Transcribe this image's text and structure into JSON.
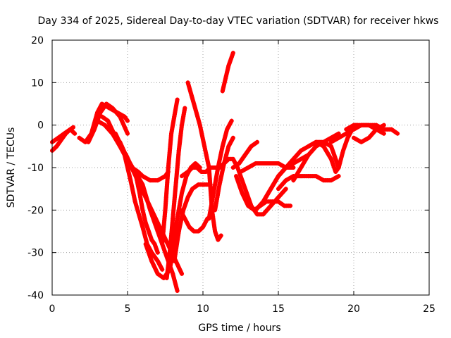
{
  "chart_data": {
    "type": "scatter",
    "title": "Day 334 of 2025, Sidereal Day-to-day VTEC variation (SDTVAR) for receiver hkws",
    "xlabel": "GPS time / hours",
    "ylabel": "SDTVAR / TECUs",
    "xlim": [
      0,
      25
    ],
    "ylim": [
      -40,
      20
    ],
    "x_ticks": [
      0,
      5,
      10,
      15,
      20,
      25
    ],
    "y_ticks": [
      -40,
      -30,
      -20,
      -10,
      0,
      10,
      20
    ],
    "x_tick_labels": [
      "0",
      "5",
      "10",
      "15",
      "20",
      "25"
    ],
    "y_tick_labels": [
      "-40",
      "-30",
      "-20",
      "-10",
      "0",
      "10",
      "20"
    ],
    "grid": true,
    "marker": "+",
    "color": "#ff0000",
    "series": [
      {
        "x": [
          0,
          0.3,
          0.6,
          0.9,
          1.2,
          1.5
        ],
        "y": [
          -6,
          -5,
          -3.5,
          -2,
          -1,
          -2
        ]
      },
      {
        "x": [
          0,
          0.4,
          0.8,
          1.2,
          1.4
        ],
        "y": [
          -4,
          -3,
          -2,
          -1,
          -0.5
        ]
      },
      {
        "x": [
          1.8,
          2.2,
          2.6,
          3.0,
          3.3,
          3.8,
          4.3,
          4.8,
          5.0
        ],
        "y": [
          -3,
          -4,
          -2,
          3,
          5,
          4,
          3,
          2,
          1
        ]
      },
      {
        "x": [
          2.4,
          2.8,
          3.2,
          3.6,
          4.0,
          4.5,
          5.0
        ],
        "y": [
          -4,
          -1,
          3,
          5,
          4,
          2,
          -2
        ]
      },
      {
        "x": [
          3.3,
          3.7,
          4.1,
          4.5,
          4.9,
          5.3,
          5.7,
          6.0,
          6.5,
          7.0,
          7.5,
          7.7
        ],
        "y": [
          2,
          1,
          -2,
          -5,
          -7,
          -10,
          -11,
          -12,
          -13,
          -13,
          -12,
          -11
        ]
      },
      {
        "x": [
          3.0,
          3.5,
          4.0,
          4.5,
          4.8,
          5.0,
          5.2,
          5.5,
          6.0,
          6.3,
          6.6,
          7.0,
          7.3
        ],
        "y": [
          1,
          0,
          -2,
          -5,
          -7,
          -10,
          -13,
          -18,
          -24,
          -28,
          -30,
          -32,
          -34
        ]
      },
      {
        "x": [
          3.5,
          4.0,
          4.5,
          5.0,
          5.5,
          6.0,
          6.5,
          7.0,
          7.3,
          7.6,
          8.0,
          8.3
        ],
        "y": [
          0,
          -2,
          -4,
          -8,
          -11,
          -14,
          -20,
          -25,
          -28,
          -31,
          -35,
          -39
        ]
      },
      {
        "x": [
          4.2,
          4.6,
          5.0,
          5.4,
          5.8,
          6.2,
          6.6,
          7.0,
          7.4,
          7.8,
          8.2,
          8.6
        ],
        "y": [
          -2,
          -5,
          -8,
          -11,
          -14,
          -17,
          -20,
          -23,
          -26,
          -29,
          -32,
          -35
        ]
      },
      {
        "x": [
          5.5,
          5.8,
          6.0,
          6.2,
          6.4,
          6.6,
          6.8,
          7.0
        ],
        "y": [
          -11,
          -16,
          -20,
          -23,
          -25,
          -27,
          -28,
          -30
        ]
      },
      {
        "x": [
          6.2,
          6.6,
          7.0,
          7.4,
          7.8,
          8.0,
          8.1
        ],
        "y": [
          -28,
          -32,
          -35,
          -36,
          -34,
          -30,
          -26
        ]
      },
      {
        "x": [
          7.3,
          7.5,
          7.7,
          7.9,
          8.1,
          8.3
        ],
        "y": [
          -28,
          -20,
          -10,
          -2,
          2,
          6
        ]
      },
      {
        "x": [
          7.6,
          7.8,
          8.0,
          8.2,
          8.4,
          8.6,
          8.8
        ],
        "y": [
          -36,
          -30,
          -22,
          -14,
          -6,
          0,
          4
        ]
      },
      {
        "x": [
          8.1,
          8.4,
          8.7,
          9.0,
          9.3,
          9.7,
          10.1,
          10.5
        ],
        "y": [
          -32,
          -25,
          -20,
          -17,
          -15,
          -14,
          -14,
          -14
        ]
      },
      {
        "x": [
          8.0,
          8.3,
          8.6,
          8.9,
          9.2,
          9.5,
          9.8
        ],
        "y": [
          -28,
          -22,
          -16,
          -12,
          -10,
          -9,
          -10
        ]
      },
      {
        "x": [
          8.6,
          9.0,
          9.3,
          9.6,
          9.9,
          10.2,
          10.5,
          10.8,
          11.1,
          11.4,
          11.7,
          12.0
        ],
        "y": [
          -12,
          -11,
          -10,
          -10,
          -11,
          -11,
          -10,
          -10,
          -10,
          -9,
          -8,
          -8
        ]
      },
      {
        "x": [
          9.0,
          9.4,
          9.8,
          10.1,
          10.4,
          10.6,
          10.8,
          11.0,
          11.2
        ],
        "y": [
          10,
          5,
          0,
          -5,
          -10,
          -20,
          -25,
          -27,
          -26
        ]
      },
      {
        "x": [
          8.5,
          8.8,
          9.1,
          9.4,
          9.7,
          10.0,
          10.3
        ],
        "y": [
          -20,
          -22,
          -24,
          -25,
          -25,
          -24,
          -22
        ]
      },
      {
        "x": [
          10.4,
          10.7,
          11.0,
          11.3,
          11.6,
          11.9
        ],
        "y": [
          -22,
          -16,
          -10,
          -5,
          -1,
          1
        ]
      },
      {
        "x": [
          10.8,
          11.1,
          11.4,
          11.7,
          12.0
        ],
        "y": [
          -20,
          -14,
          -9,
          -5,
          -3
        ]
      },
      {
        "x": [
          11.3,
          11.5,
          11.7,
          11.9,
          12.0
        ],
        "y": [
          8,
          11,
          14,
          16,
          17
        ]
      },
      {
        "x": [
          12.0,
          12.3,
          12.6,
          12.9,
          13.2,
          13.6,
          14.0,
          14.5,
          15.0,
          15.5
        ],
        "y": [
          -8,
          -10,
          -13,
          -16,
          -19,
          -21,
          -21,
          -19,
          -17,
          -15
        ]
      },
      {
        "x": [
          12.2,
          12.6,
          13.0,
          13.4,
          13.8,
          14.2,
          14.6,
          15.0,
          15.4,
          15.8
        ],
        "y": [
          -12,
          -16,
          -19,
          -20,
          -19,
          -18,
          -18,
          -18,
          -19,
          -19
        ]
      },
      {
        "x": [
          12.0,
          12.4,
          12.8,
          13.2,
          13.6
        ],
        "y": [
          -10,
          -9,
          -7,
          -5,
          -4
        ]
      },
      {
        "x": [
          13.5,
          14.0,
          14.5,
          15.0,
          15.5,
          16.0,
          16.5,
          17.0
        ],
        "y": [
          -20,
          -18,
          -15,
          -12,
          -10,
          -9,
          -8,
          -7
        ]
      },
      {
        "x": [
          14.0,
          14.5,
          15.0,
          15.5,
          16.0,
          16.5,
          17.0,
          17.5,
          18.0,
          18.5,
          19.0
        ],
        "y": [
          -18,
          -15,
          -12,
          -10,
          -8,
          -6,
          -5,
          -4,
          -4,
          -3,
          -2
        ]
      },
      {
        "x": [
          12.5,
          13.0,
          13.5,
          14.0,
          14.5,
          15.0,
          15.5,
          16.0
        ],
        "y": [
          -11,
          -10,
          -9,
          -9,
          -9,
          -9,
          -10,
          -10
        ]
      },
      {
        "x": [
          15.0,
          15.5,
          16.0,
          16.5,
          17.0,
          17.5,
          18.0,
          18.5,
          19.0
        ],
        "y": [
          -15,
          -13,
          -12,
          -12,
          -12,
          -12,
          -13,
          -13,
          -12
        ]
      },
      {
        "x": [
          16.0,
          16.5,
          17.0,
          17.5,
          18.0,
          18.5,
          18.8,
          19.0
        ],
        "y": [
          -13,
          -10,
          -7,
          -5,
          -4,
          -5,
          -8,
          -10
        ]
      },
      {
        "x": [
          17.0,
          17.5,
          18.0,
          18.5,
          18.8,
          19.0,
          19.3,
          19.6,
          19.9,
          20.2
        ],
        "y": [
          -5,
          -4,
          -5,
          -8,
          -11,
          -10,
          -6,
          -3,
          -1,
          0
        ]
      },
      {
        "x": [
          18.5,
          19.0,
          19.5,
          20.0,
          20.5,
          21.0,
          21.5,
          22.0
        ],
        "y": [
          -4,
          -3,
          -2,
          -1,
          0,
          0,
          -1,
          -2
        ]
      },
      {
        "x": [
          19.5,
          20.0,
          20.5,
          21.0,
          21.5,
          22.0,
          22.5,
          22.9
        ],
        "y": [
          -1,
          0,
          0,
          0,
          0,
          -1,
          -1,
          -2
        ]
      },
      {
        "x": [
          20.0,
          20.5,
          21.0,
          21.5,
          22.0
        ],
        "y": [
          -3,
          -4,
          -3,
          -1,
          0
        ]
      }
    ]
  }
}
